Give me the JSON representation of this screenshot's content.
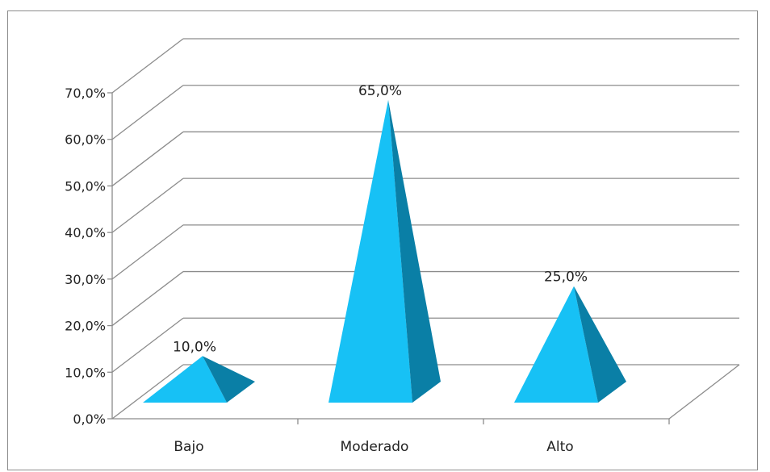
{
  "chart_data": {
    "type": "bar",
    "style": "3d-pyramid",
    "categories": [
      "Bajo",
      "Moderado",
      "Alto"
    ],
    "values": [
      10.0,
      65.0,
      25.0
    ],
    "data_labels": [
      "10,0%",
      "65,0%",
      "25,0%"
    ],
    "y_ticks": [
      "0,0%",
      "10,0%",
      "20,0%",
      "30,0%",
      "40,0%",
      "50,0%",
      "60,0%",
      "70,0%"
    ],
    "ylim": [
      0,
      70
    ],
    "grid": true,
    "legend": "none",
    "colors": {
      "pyramid_front": "#17c1f5",
      "pyramid_side": "#0a7fa6",
      "gridline": "#8c8c8c",
      "axis": "#8c8c8c"
    }
  }
}
